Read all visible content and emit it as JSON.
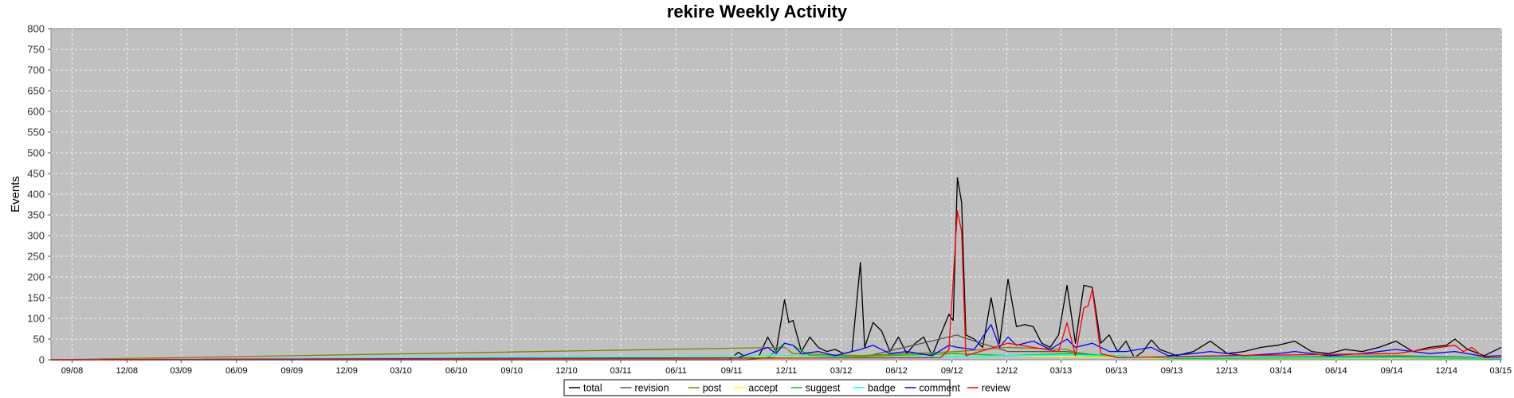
{
  "chart_data": {
    "type": "line",
    "title": "rekire Weekly Activity",
    "xlabel": "",
    "ylabel": "Events",
    "ylim": [
      0,
      800
    ],
    "yticks": [
      0,
      50,
      100,
      150,
      200,
      250,
      300,
      350,
      400,
      450,
      500,
      550,
      600,
      650,
      700,
      750,
      800
    ],
    "xlim": [
      "2008-07-28",
      "2015-03-02"
    ],
    "xticks": [
      "09/08",
      "12/08",
      "03/09",
      "06/09",
      "09/09",
      "12/09",
      "03/10",
      "06/10",
      "09/10",
      "12/10",
      "03/11",
      "06/11",
      "09/11",
      "12/11",
      "03/12",
      "06/12",
      "09/12",
      "12/12",
      "03/13",
      "06/13",
      "09/13",
      "12/13",
      "03/14",
      "06/14",
      "09/14",
      "12/14",
      "03/15"
    ],
    "xtick_dates": [
      "2008-09-01",
      "2008-12-01",
      "2009-03-01",
      "2009-06-01",
      "2009-09-01",
      "2009-12-01",
      "2010-03-01",
      "2010-06-01",
      "2010-09-01",
      "2010-12-01",
      "2011-03-01",
      "2011-06-01",
      "2011-09-01",
      "2011-12-01",
      "2012-03-01",
      "2012-06-01",
      "2012-09-01",
      "2012-12-01",
      "2013-03-01",
      "2013-06-01",
      "2013-09-01",
      "2013-12-01",
      "2014-03-01",
      "2014-06-01",
      "2014-09-01",
      "2014-12-01",
      "2015-03-01"
    ],
    "grid": true,
    "background": "#c0c0c0",
    "legend_position": "bottom-center",
    "series": [
      {
        "name": "total",
        "color": "#000000",
        "points": [
          [
            "2008-07-28",
            0
          ],
          [
            "2011-08-29",
            0
          ],
          [
            "2011-09-12",
            18
          ],
          [
            "2011-09-26",
            5
          ],
          [
            "2011-10-17",
            10
          ],
          [
            "2011-10-31",
            55
          ],
          [
            "2011-11-14",
            20
          ],
          [
            "2011-11-28",
            145
          ],
          [
            "2011-12-05",
            90
          ],
          [
            "2011-12-12",
            95
          ],
          [
            "2011-12-26",
            20
          ],
          [
            "2012-01-09",
            55
          ],
          [
            "2012-01-23",
            30
          ],
          [
            "2012-02-06",
            20
          ],
          [
            "2012-02-20",
            25
          ],
          [
            "2012-03-05",
            15
          ],
          [
            "2012-03-19",
            20
          ],
          [
            "2012-04-02",
            235
          ],
          [
            "2012-04-09",
            30
          ],
          [
            "2012-04-23",
            90
          ],
          [
            "2012-05-07",
            70
          ],
          [
            "2012-05-21",
            20
          ],
          [
            "2012-06-04",
            55
          ],
          [
            "2012-06-18",
            15
          ],
          [
            "2012-07-02",
            40
          ],
          [
            "2012-07-16",
            55
          ],
          [
            "2012-07-30",
            10
          ],
          [
            "2012-08-13",
            60
          ],
          [
            "2012-08-27",
            110
          ],
          [
            "2012-09-03",
            95
          ],
          [
            "2012-09-10",
            440
          ],
          [
            "2012-09-17",
            380
          ],
          [
            "2012-09-24",
            60
          ],
          [
            "2012-10-08",
            50
          ],
          [
            "2012-10-22",
            30
          ],
          [
            "2012-11-05",
            150
          ],
          [
            "2012-11-19",
            40
          ],
          [
            "2012-12-03",
            195
          ],
          [
            "2012-12-17",
            80
          ],
          [
            "2012-12-31",
            85
          ],
          [
            "2013-01-14",
            80
          ],
          [
            "2013-01-28",
            40
          ],
          [
            "2013-02-11",
            30
          ],
          [
            "2013-02-25",
            60
          ],
          [
            "2013-03-11",
            180
          ],
          [
            "2013-03-25",
            40
          ],
          [
            "2013-04-08",
            180
          ],
          [
            "2013-04-22",
            175
          ],
          [
            "2013-05-06",
            40
          ],
          [
            "2013-05-20",
            60
          ],
          [
            "2013-06-03",
            20
          ],
          [
            "2013-06-17",
            45
          ],
          [
            "2013-07-01",
            5
          ],
          [
            "2013-07-15",
            20
          ],
          [
            "2013-07-29",
            48
          ],
          [
            "2013-08-12",
            25
          ],
          [
            "2013-09-09",
            10
          ],
          [
            "2013-10-07",
            20
          ],
          [
            "2013-11-04",
            45
          ],
          [
            "2013-12-02",
            15
          ],
          [
            "2013-12-30",
            20
          ],
          [
            "2014-01-27",
            30
          ],
          [
            "2014-02-24",
            35
          ],
          [
            "2014-03-24",
            45
          ],
          [
            "2014-04-21",
            20
          ],
          [
            "2014-05-19",
            15
          ],
          [
            "2014-06-16",
            25
          ],
          [
            "2014-07-14",
            20
          ],
          [
            "2014-08-11",
            30
          ],
          [
            "2014-09-08",
            45
          ],
          [
            "2014-10-06",
            20
          ],
          [
            "2014-11-03",
            30
          ],
          [
            "2014-12-01",
            35
          ],
          [
            "2014-12-15",
            50
          ],
          [
            "2015-01-05",
            25
          ],
          [
            "2015-02-02",
            10
          ],
          [
            "2015-03-02",
            30
          ]
        ]
      },
      {
        "name": "revision",
        "color": "#555555",
        "points": [
          [
            "2008-07-28",
            0
          ],
          [
            "2011-09-26",
            0
          ],
          [
            "2011-11-28",
            10
          ],
          [
            "2012-04-02",
            5
          ],
          [
            "2012-09-10",
            60
          ],
          [
            "2012-09-17",
            55
          ],
          [
            "2012-12-03",
            20
          ],
          [
            "2013-03-11",
            20
          ],
          [
            "2013-06-03",
            5
          ],
          [
            "2014-09-08",
            8
          ],
          [
            "2015-03-02",
            3
          ]
        ]
      },
      {
        "name": "post",
        "color": "#808000",
        "points": [
          [
            "2008-07-28",
            0
          ],
          [
            "2011-11-28",
            30
          ],
          [
            "2011-12-12",
            15
          ],
          [
            "2012-04-02",
            10
          ],
          [
            "2012-09-10",
            20
          ],
          [
            "2012-12-03",
            30
          ],
          [
            "2013-03-11",
            25
          ],
          [
            "2013-04-08",
            10
          ],
          [
            "2013-09-09",
            5
          ],
          [
            "2014-09-08",
            10
          ],
          [
            "2015-03-02",
            5
          ]
        ]
      },
      {
        "name": "accept",
        "color": "#ffff00",
        "points": [
          [
            "2008-07-28",
            0
          ],
          [
            "2011-11-28",
            8
          ],
          [
            "2012-04-02",
            5
          ],
          [
            "2012-09-10",
            8
          ],
          [
            "2012-12-03",
            10
          ],
          [
            "2013-03-11",
            8
          ],
          [
            "2013-09-09",
            3
          ],
          [
            "2014-09-08",
            4
          ],
          [
            "2015-03-02",
            2
          ]
        ]
      },
      {
        "name": "suggest",
        "color": "#00cc00",
        "points": [
          [
            "2008-07-28",
            0
          ],
          [
            "2011-10-31",
            5
          ],
          [
            "2011-11-28",
            40
          ],
          [
            "2011-12-12",
            35
          ],
          [
            "2012-01-09",
            10
          ],
          [
            "2012-04-02",
            8
          ],
          [
            "2012-09-10",
            15
          ],
          [
            "2012-12-03",
            10
          ],
          [
            "2013-03-11",
            15
          ],
          [
            "2013-09-09",
            3
          ],
          [
            "2014-09-08",
            5
          ],
          [
            "2015-03-02",
            2
          ]
        ]
      },
      {
        "name": "badge",
        "color": "#00ffff",
        "points": [
          [
            "2008-07-28",
            0
          ],
          [
            "2011-11-28",
            10
          ],
          [
            "2012-04-02",
            5
          ],
          [
            "2012-09-10",
            8
          ],
          [
            "2012-12-03",
            10
          ],
          [
            "2013-03-11",
            12
          ],
          [
            "2013-09-09",
            5
          ],
          [
            "2014-09-08",
            6
          ],
          [
            "2015-03-02",
            3
          ]
        ]
      },
      {
        "name": "comment",
        "color": "#0000ff",
        "points": [
          [
            "2008-07-28",
            0
          ],
          [
            "2011-09-12",
            5
          ],
          [
            "2011-10-31",
            30
          ],
          [
            "2011-11-14",
            15
          ],
          [
            "2011-11-28",
            40
          ],
          [
            "2011-12-12",
            35
          ],
          [
            "2011-12-26",
            15
          ],
          [
            "2012-01-23",
            20
          ],
          [
            "2012-02-20",
            10
          ],
          [
            "2012-04-02",
            25
          ],
          [
            "2012-04-23",
            35
          ],
          [
            "2012-05-21",
            15
          ],
          [
            "2012-06-18",
            20
          ],
          [
            "2012-07-30",
            10
          ],
          [
            "2012-08-27",
            35
          ],
          [
            "2012-09-10",
            30
          ],
          [
            "2012-10-08",
            25
          ],
          [
            "2012-11-05",
            85
          ],
          [
            "2012-11-19",
            30
          ],
          [
            "2012-12-03",
            55
          ],
          [
            "2012-12-17",
            35
          ],
          [
            "2013-01-14",
            45
          ],
          [
            "2013-02-11",
            25
          ],
          [
            "2013-03-11",
            50
          ],
          [
            "2013-03-25",
            30
          ],
          [
            "2013-04-22",
            40
          ],
          [
            "2013-05-20",
            20
          ],
          [
            "2013-06-17",
            20
          ],
          [
            "2013-07-29",
            30
          ],
          [
            "2013-08-26",
            10
          ],
          [
            "2013-10-07",
            15
          ],
          [
            "2013-11-04",
            20
          ],
          [
            "2013-12-30",
            10
          ],
          [
            "2014-02-24",
            15
          ],
          [
            "2014-03-24",
            20
          ],
          [
            "2014-05-19",
            10
          ],
          [
            "2014-07-14",
            15
          ],
          [
            "2014-09-08",
            25
          ],
          [
            "2014-11-03",
            15
          ],
          [
            "2014-12-15",
            20
          ],
          [
            "2015-02-02",
            8
          ],
          [
            "2015-03-02",
            10
          ]
        ]
      },
      {
        "name": "review",
        "color": "#ff0000",
        "points": [
          [
            "2008-07-28",
            0
          ],
          [
            "2012-08-13",
            5
          ],
          [
            "2012-08-27",
            25
          ],
          [
            "2012-09-10",
            360
          ],
          [
            "2012-09-17",
            310
          ],
          [
            "2012-09-24",
            10
          ],
          [
            "2012-12-03",
            40
          ],
          [
            "2013-02-25",
            20
          ],
          [
            "2013-03-11",
            90
          ],
          [
            "2013-03-25",
            10
          ],
          [
            "2013-04-08",
            125
          ],
          [
            "2013-04-15",
            130
          ],
          [
            "2013-04-22",
            170
          ],
          [
            "2013-05-06",
            15
          ],
          [
            "2013-06-03",
            5
          ],
          [
            "2013-12-02",
            10
          ],
          [
            "2014-09-08",
            15
          ],
          [
            "2014-12-15",
            35
          ],
          [
            "2014-12-29",
            20
          ],
          [
            "2015-01-12",
            30
          ],
          [
            "2015-02-02",
            5
          ],
          [
            "2015-03-02",
            5
          ]
        ]
      }
    ]
  }
}
